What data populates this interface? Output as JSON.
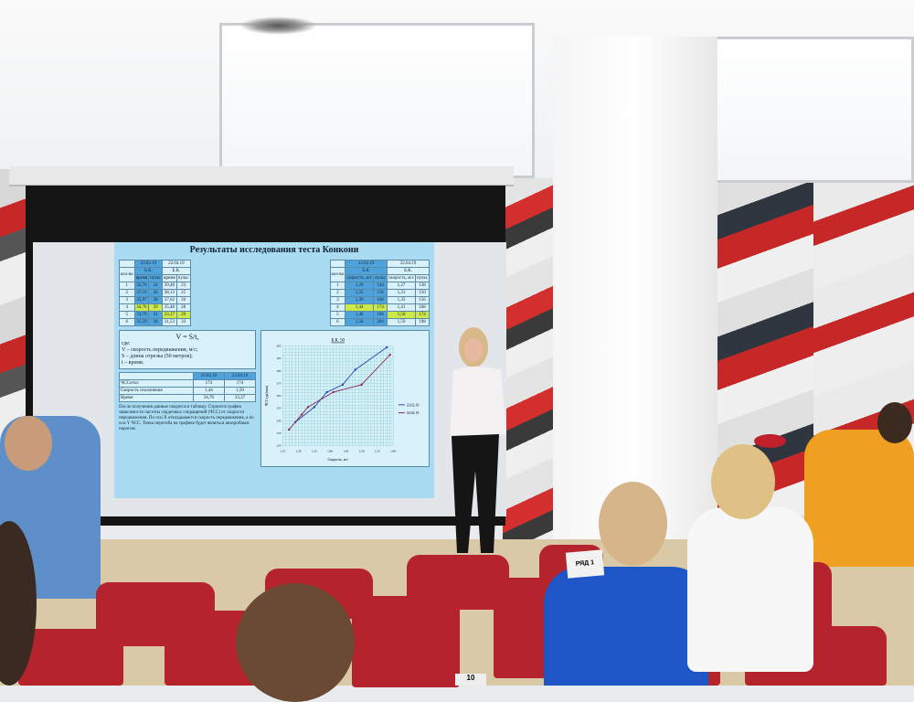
{
  "slide": {
    "title": "Результаты исследования теста Конкони",
    "table_time": {
      "header_dates": [
        "23.02.19",
        "22.04.19"
      ],
      "header_group": [
        "Б.К.",
        "Б.К."
      ],
      "columns": [
        "кол-во",
        "время",
        "пульс",
        "время",
        "пульс"
      ],
      "rows": [
        [
          "1",
          "35,70",
          "24",
          "39,48",
          "23"
        ],
        [
          "2",
          "37,16",
          "26",
          "38,13",
          "25"
        ],
        [
          "3",
          "35,97",
          "28",
          "37,62",
          "26"
        ],
        [
          "4",
          "34,76",
          "29",
          "35,48",
          "28"
        ],
        [
          "5",
          "33,70",
          "31",
          "33,37",
          "29"
        ],
        [
          "6",
          "31,59",
          "34",
          "31,53",
          "33"
        ]
      ]
    },
    "table_speed": {
      "header_dates": [
        "23.02.19",
        "22.04.19"
      ],
      "header_group": [
        "Б.К.",
        "Б.К."
      ],
      "columns": [
        "кол-во",
        "скорость, м/с",
        "пульс",
        "скорость, м/с",
        "пульс"
      ],
      "rows": [
        [
          "1",
          "1,29",
          "144",
          "1,27",
          "138"
        ],
        [
          "2",
          "1,35",
          "156",
          "1,31",
          "150"
        ],
        [
          "3",
          "1,39",
          "168",
          "1,33",
          "156"
        ],
        [
          "4",
          "1,44",
          "174",
          "1,41",
          "168"
        ],
        [
          "5",
          "1,48",
          "186",
          "1,50",
          "174"
        ],
        [
          "6",
          "1,58",
          "204",
          "1,59",
          "198"
        ]
      ]
    },
    "formula": {
      "line1": "V = S/t,",
      "line2": "где:",
      "line3": "V – скорость передвижения, м/с;",
      "line4": "S – длина отрезка (50 метров);",
      "line5": "t – время."
    },
    "summary": {
      "dates": [
        "23.02.19",
        "22.04.19"
      ],
      "rows": [
        [
          "ЧССоткл",
          "174",
          "174"
        ],
        [
          "Скорость отклонения",
          "1,44",
          "1,50"
        ],
        [
          "Время",
          "34,76",
          "33,37"
        ]
      ]
    },
    "description": "После получения данные сводятся в таблицу. Строится график зависимости частоты сердечных сокращений (ЧСС) от скорости передвижения. По оси X откладывается скорость передвижения, а по оси Y ЧСС. Точка перегиба на графике будет являться анаэробным порогом.",
    "chart_data": {
      "type": "line",
      "title": "Б.К. 50",
      "xlabel": "Скорость, м/с",
      "ylabel": "ЧСС (уд/мин)",
      "xlim": [
        1.25,
        1.6
      ],
      "ylim": [
        125,
        205
      ],
      "xticks": [
        "1,25",
        "1,30",
        "1,35",
        "1,40",
        "1,45",
        "1,50",
        "1,55",
        "1,60"
      ],
      "yticks": [
        "125",
        "135",
        "145",
        "155",
        "165",
        "175",
        "185",
        "195",
        "205"
      ],
      "grid": true,
      "legend": "right",
      "series": [
        {
          "name": "23.02.19",
          "color": "#2a3fb0",
          "x": [
            1.29,
            1.35,
            1.39,
            1.44,
            1.48,
            1.58
          ],
          "y": [
            144,
            156,
            168,
            174,
            186,
            204
          ]
        },
        {
          "name": "22.04.19",
          "color": "#8b2252",
          "x": [
            1.27,
            1.31,
            1.33,
            1.41,
            1.5,
            1.59
          ],
          "y": [
            138,
            150,
            156,
            168,
            174,
            198
          ]
        }
      ]
    }
  },
  "sign": {
    "text": "РЯД 1"
  },
  "seat_number": "10"
}
